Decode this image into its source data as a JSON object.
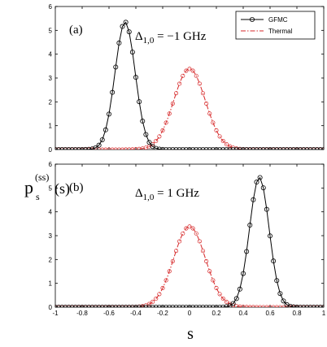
{
  "figure": {
    "ylabel_main": "p",
    "ylabel_sup": "(ss)",
    "ylabel_sub": "s",
    "ylabel_arg": "(s)",
    "xlabel": "s"
  },
  "legend": {
    "gfmc": "GFMC",
    "thermal": "Thermal"
  },
  "colors": {
    "gfmc": "#000000",
    "thermal": "#d62728"
  },
  "chart_data": [
    {
      "type": "line",
      "panel_label": "(a)",
      "annotation": {
        "prefix": "Δ",
        "sub": "1,0",
        "value": " = −1 GHz"
      },
      "xlim": [
        -1,
        1
      ],
      "ylim": [
        0,
        6
      ],
      "xticks": [
        -1,
        -0.8,
        -0.6,
        -0.4,
        -0.2,
        0,
        0.2,
        0.4,
        0.6,
        0.8,
        1
      ],
      "yticks": [
        0,
        1,
        2,
        3,
        4,
        5,
        6
      ],
      "show_xticklabels": false,
      "legend_position": "top-right",
      "series": [
        {
          "name": "GFMC",
          "style": "line-circle",
          "mean": -0.48,
          "sigma": 0.075,
          "peak": 5.35,
          "npoints": 81
        },
        {
          "name": "Thermal",
          "style": "dash-dot",
          "mean": 0.0,
          "sigma": 0.118,
          "peak": 3.38,
          "npoints": 81
        }
      ]
    },
    {
      "type": "line",
      "panel_label": "(b)",
      "annotation": {
        "prefix": "Δ",
        "sub": "1,0",
        "value": " = 1 GHz"
      },
      "xlim": [
        -1,
        1
      ],
      "ylim": [
        0,
        6
      ],
      "xticks": [
        -1,
        -0.8,
        -0.6,
        -0.4,
        -0.2,
        0,
        0.2,
        0.4,
        0.6,
        0.8,
        1
      ],
      "yticks": [
        0,
        1,
        2,
        3,
        4,
        5,
        6
      ],
      "show_xticklabels": true,
      "series": [
        {
          "name": "GFMC",
          "style": "line-circle",
          "mean": 0.52,
          "sigma": 0.073,
          "peak": 5.45,
          "npoints": 81
        },
        {
          "name": "Thermal",
          "style": "dash-dot",
          "mean": 0.0,
          "sigma": 0.118,
          "peak": 3.38,
          "npoints": 81
        }
      ]
    }
  ]
}
